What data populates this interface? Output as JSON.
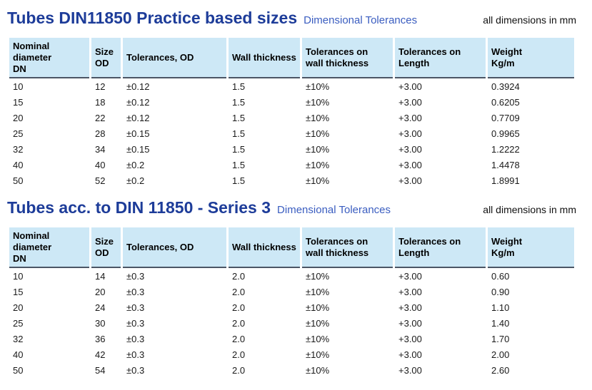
{
  "sections": [
    {
      "title": "Tubes DIN11850 Practice based sizes",
      "subtitle": "Dimensional Tolerances",
      "note": "all dimensions in mm",
      "table": {
        "columns": [
          "Nominal\ndiameter\nDN",
          "Size\nOD",
          "Tolerances, OD",
          "Wall thickness",
          "Tolerances on\nwall thickness",
          "Tolerances on\nLength",
          "Weight\nKg/m"
        ],
        "rows": [
          [
            "10",
            "12",
            "±0.12",
            "1.5",
            "±10%",
            "+3.00",
            "0.3924"
          ],
          [
            "15",
            "18",
            "±0.12",
            "1.5",
            "±10%",
            "+3.00",
            "0.6205"
          ],
          [
            "20",
            "22",
            "±0.12",
            "1.5",
            "±10%",
            "+3.00",
            "0.7709"
          ],
          [
            "25",
            "28",
            "±0.15",
            "1.5",
            "±10%",
            "+3.00",
            "0.9965"
          ],
          [
            "32",
            "34",
            "±0.15",
            "1.5",
            "±10%",
            "+3.00",
            "1.2222"
          ],
          [
            "40",
            "40",
            "±0.2",
            "1.5",
            "±10%",
            "+3.00",
            "1.4478"
          ],
          [
            "50",
            "52",
            "±0.2",
            "1.5",
            "±10%",
            "+3.00",
            "1.8991"
          ]
        ]
      }
    },
    {
      "title": "Tubes acc. to DIN 11850 - Series 3",
      "subtitle": "Dimensional Tolerances",
      "note": "all dimensions in mm",
      "table": {
        "columns": [
          "Nominal\ndiameter\nDN",
          "Size\nOD",
          "Tolerances, OD",
          "Wall thickness",
          "Tolerances on\nwall thickness",
          "Tolerances on\nLength",
          "Weight\nKg/m"
        ],
        "rows": [
          [
            "10",
            "14",
            "±0.3",
            "2.0",
            "±10%",
            "+3.00",
            "0.60"
          ],
          [
            "15",
            "20",
            "±0.3",
            "2.0",
            "±10%",
            "+3.00",
            "0.90"
          ],
          [
            "20",
            "24",
            "±0.3",
            "2.0",
            "±10%",
            "+3.00",
            "1.10"
          ],
          [
            "25",
            "30",
            "±0.3",
            "2.0",
            "±10%",
            "+3.00",
            "1.40"
          ],
          [
            "32",
            "36",
            "±0.3",
            "2.0",
            "±10%",
            "+3.00",
            "1.70"
          ],
          [
            "40",
            "42",
            "±0.3",
            "2.0",
            "±10%",
            "+3.00",
            "2.00"
          ],
          [
            "50",
            "54",
            "±0.3",
            "2.0",
            "±10%",
            "+3.00",
            "2.60"
          ]
        ]
      }
    }
  ],
  "colors": {
    "title_blue": "#1d3c99",
    "subtitle_blue": "#3a5dc0",
    "header_bg": "#cde8f6",
    "header_rule": "#4b5565",
    "body_text": "#1a1a1a"
  }
}
